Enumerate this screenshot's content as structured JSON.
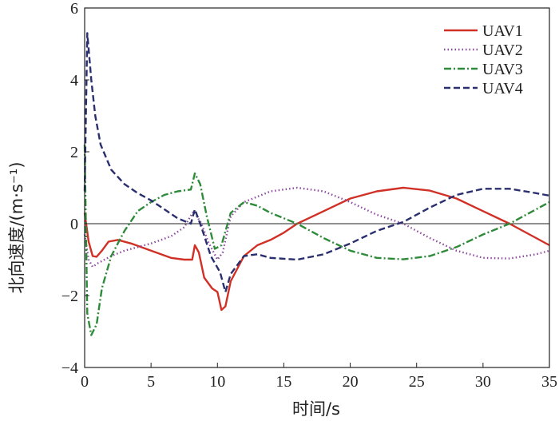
{
  "chart_data": {
    "type": "line",
    "title": "",
    "xlabel": "时间/s",
    "ylabel": "北向速度/(m·s⁻¹)",
    "xlim": [
      0,
      35
    ],
    "ylim": [
      -4,
      6
    ],
    "x_ticks": [
      0,
      5,
      10,
      15,
      20,
      25,
      30,
      35
    ],
    "y_ticks": [
      -4,
      -2,
      0,
      2,
      4,
      6
    ],
    "grid": false,
    "zero_line": true,
    "legend": "top-right",
    "series": [
      {
        "name": "UAV1",
        "color": "#d03025",
        "style": "solid",
        "points": [
          [
            0,
            0.3
          ],
          [
            0.3,
            -0.5
          ],
          [
            0.6,
            -0.9
          ],
          [
            0.9,
            -0.92
          ],
          [
            1.3,
            -0.75
          ],
          [
            1.8,
            -0.5
          ],
          [
            2.5,
            -0.45
          ],
          [
            3.5,
            -0.55
          ],
          [
            5,
            -0.75
          ],
          [
            6.5,
            -0.95
          ],
          [
            7.5,
            -1.0
          ],
          [
            8.1,
            -1.0
          ],
          [
            8.3,
            -0.6
          ],
          [
            8.6,
            -0.8
          ],
          [
            9.0,
            -1.5
          ],
          [
            9.6,
            -1.8
          ],
          [
            10.0,
            -1.9
          ],
          [
            10.3,
            -2.4
          ],
          [
            10.6,
            -2.3
          ],
          [
            11.0,
            -1.6
          ],
          [
            12,
            -0.9
          ],
          [
            13,
            -0.6
          ],
          [
            14,
            -0.45
          ],
          [
            15,
            -0.25
          ],
          [
            16,
            0.0
          ],
          [
            18,
            0.35
          ],
          [
            20,
            0.7
          ],
          [
            22,
            0.9
          ],
          [
            24,
            1.0
          ],
          [
            26,
            0.92
          ],
          [
            28,
            0.7
          ],
          [
            30,
            0.35
          ],
          [
            32,
            0.0
          ],
          [
            34,
            -0.4
          ],
          [
            35,
            -0.6
          ]
        ]
      },
      {
        "name": "UAV2",
        "color": "#8e4a9e",
        "style": "dotted",
        "points": [
          [
            0,
            -0.3
          ],
          [
            0.3,
            -1.0
          ],
          [
            0.6,
            -1.2
          ],
          [
            1,
            -1.1
          ],
          [
            2,
            -0.9
          ],
          [
            3,
            -0.75
          ],
          [
            5,
            -0.55
          ],
          [
            6.5,
            -0.35
          ],
          [
            7.5,
            -0.1
          ],
          [
            8.2,
            0.35
          ],
          [
            8.8,
            0.0
          ],
          [
            9.3,
            -0.5
          ],
          [
            10,
            -1.0
          ],
          [
            10.4,
            -0.8
          ],
          [
            11,
            0.2
          ],
          [
            12,
            0.6
          ],
          [
            14,
            0.9
          ],
          [
            16,
            1.0
          ],
          [
            18,
            0.9
          ],
          [
            20,
            0.6
          ],
          [
            22,
            0.25
          ],
          [
            24,
            0.0
          ],
          [
            26,
            -0.4
          ],
          [
            28,
            -0.75
          ],
          [
            30,
            -0.95
          ],
          [
            32,
            -0.97
          ],
          [
            34,
            -0.85
          ],
          [
            35,
            -0.75
          ]
        ]
      },
      {
        "name": "UAV3",
        "color": "#2e8b3a",
        "style": "dashdot",
        "points": [
          [
            0,
            2.2
          ],
          [
            0.2,
            -2.5
          ],
          [
            0.5,
            -3.1
          ],
          [
            0.9,
            -2.8
          ],
          [
            1.3,
            -1.8
          ],
          [
            2,
            -0.9
          ],
          [
            3,
            -0.2
          ],
          [
            4,
            0.35
          ],
          [
            5,
            0.6
          ],
          [
            6,
            0.8
          ],
          [
            7,
            0.9
          ],
          [
            8,
            0.95
          ],
          [
            8.3,
            1.4
          ],
          [
            8.7,
            1.1
          ],
          [
            9.2,
            0.2
          ],
          [
            9.8,
            -0.7
          ],
          [
            10.3,
            -0.6
          ],
          [
            11,
            0.3
          ],
          [
            12,
            0.6
          ],
          [
            13,
            0.5
          ],
          [
            14,
            0.3
          ],
          [
            16,
            0.0
          ],
          [
            18,
            -0.4
          ],
          [
            20,
            -0.75
          ],
          [
            22,
            -0.95
          ],
          [
            24,
            -0.99
          ],
          [
            26,
            -0.9
          ],
          [
            28,
            -0.65
          ],
          [
            30,
            -0.3
          ],
          [
            32,
            0.0
          ],
          [
            34,
            0.4
          ],
          [
            35,
            0.6
          ]
        ]
      },
      {
        "name": "UAV4",
        "color": "#2a2f6e",
        "style": "dashed",
        "points": [
          [
            0,
            0.9
          ],
          [
            0.2,
            5.3
          ],
          [
            0.5,
            4.0
          ],
          [
            0.8,
            3.0
          ],
          [
            1.2,
            2.2
          ],
          [
            2,
            1.5
          ],
          [
            3,
            1.1
          ],
          [
            4,
            0.85
          ],
          [
            5,
            0.65
          ],
          [
            6,
            0.4
          ],
          [
            7,
            0.15
          ],
          [
            8,
            0.0
          ],
          [
            8.3,
            0.4
          ],
          [
            8.8,
            -0.1
          ],
          [
            9.5,
            -0.9
          ],
          [
            10.2,
            -1.35
          ],
          [
            10.6,
            -1.9
          ],
          [
            11,
            -1.4
          ],
          [
            12,
            -0.9
          ],
          [
            13,
            -0.85
          ],
          [
            14,
            -0.95
          ],
          [
            16,
            -1.0
          ],
          [
            18,
            -0.85
          ],
          [
            20,
            -0.55
          ],
          [
            22,
            -0.2
          ],
          [
            24,
            0.05
          ],
          [
            26,
            0.45
          ],
          [
            28,
            0.8
          ],
          [
            30,
            0.97
          ],
          [
            32,
            0.97
          ],
          [
            34,
            0.85
          ],
          [
            35,
            0.78
          ]
        ]
      }
    ]
  }
}
